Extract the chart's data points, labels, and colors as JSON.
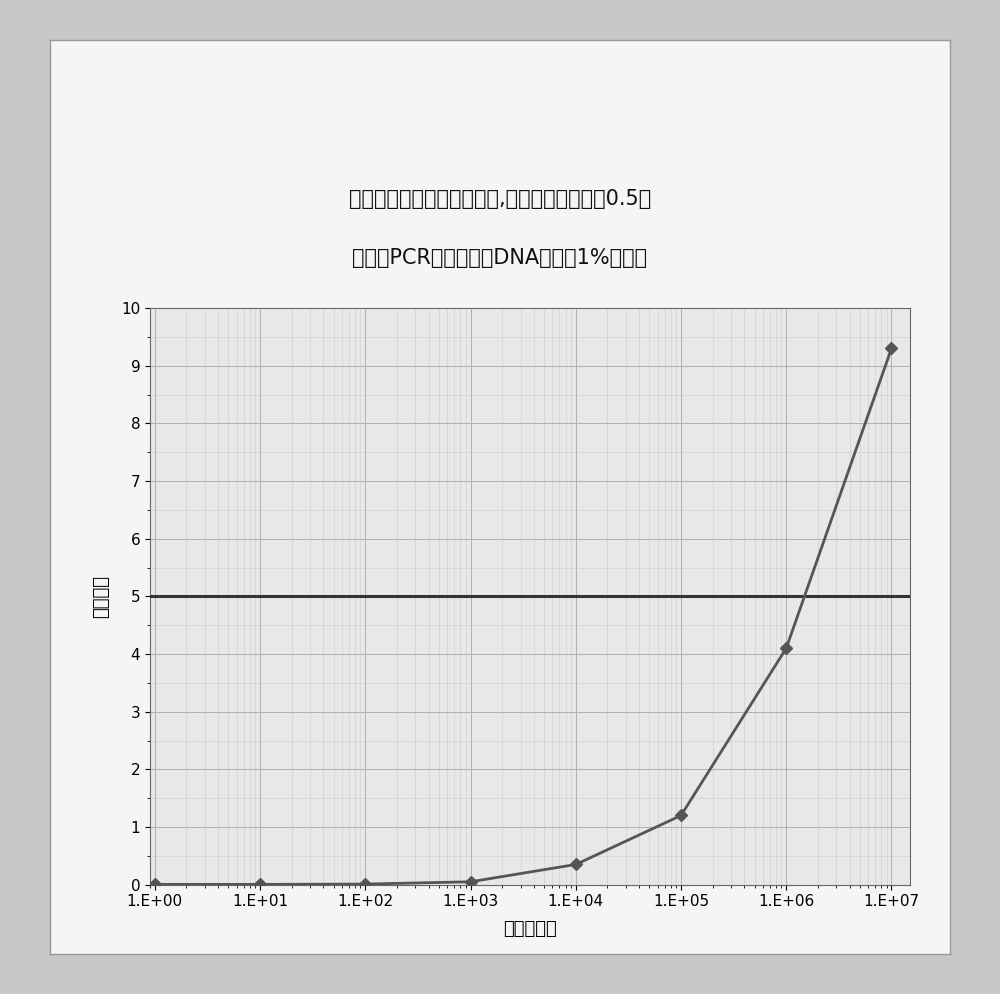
{
  "title_line1": "隔室数量所实现的标准偏差,用于在填充系数为0.5时",
  "title_line2": "在数字PCR实验中辨别DNA浓度中1%的差异",
  "xlabel": "隔室的数量",
  "ylabel": "标准偏差",
  "curve_x": [
    1,
    10,
    100,
    1000,
    10000,
    100000,
    1000000,
    10000000
  ],
  "curve_y": [
    0.005,
    0.005,
    0.01,
    0.05,
    0.35,
    1.2,
    4.1,
    9.3
  ],
  "hline_y": 5.0,
  "ylim": [
    0,
    10
  ],
  "yticks": [
    0,
    1,
    2,
    3,
    4,
    5,
    6,
    7,
    8,
    9,
    10
  ],
  "xtick_labels": [
    "1.E+00",
    "1.E+01",
    "1.E+02",
    "1.E+03",
    "1.E+04",
    "1.E+05",
    "1.E+06",
    "1.E+07"
  ],
  "curve_color": "#555555",
  "hline_color": "#333333",
  "grid_major_color": "#b0b0b0",
  "grid_minor_color": "#cccccc",
  "plot_bg_color": "#e8e8e8",
  "inner_box_color": "#f5f5f5",
  "outer_bg_color": "#c8c8c8",
  "marker": "D",
  "marker_size": 6,
  "title_fontsize": 15,
  "axis_label_fontsize": 13,
  "tick_fontsize": 11
}
